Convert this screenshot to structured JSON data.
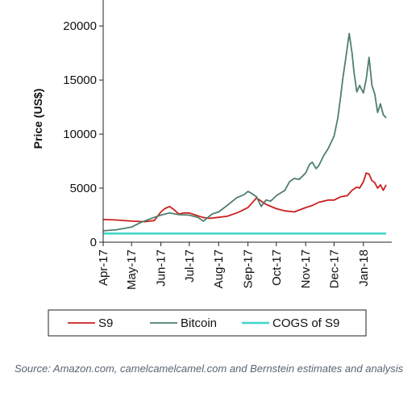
{
  "chart_data": {
    "type": "line",
    "ylabel": "Price (US$)",
    "xlabel": "",
    "ylim": [
      0,
      23000
    ],
    "y_ticks": [
      0,
      5000,
      10000,
      15000,
      20000
    ],
    "y_tick_labels": [
      "0",
      "5000",
      "10000",
      "15000",
      "20000"
    ],
    "x_range": [
      "2017-04-01",
      "2018-01-31"
    ],
    "x_ticks": [
      "2017-04-01",
      "2017-05-01",
      "2017-06-01",
      "2017-07-01",
      "2017-08-01",
      "2017-09-01",
      "2017-10-01",
      "2017-11-01",
      "2017-12-01",
      "2018-01-01"
    ],
    "x_tick_labels": [
      "Apr-17",
      "May-17",
      "Jun-17",
      "Jul-17",
      "Aug-17",
      "Sep-17",
      "Oct-17",
      "Nov-17",
      "Dec-17",
      "Jan-18"
    ],
    "grid": false,
    "legend_position": "bottom",
    "series": [
      {
        "name": "S9",
        "color": "#cc1f1f",
        "x": [
          "2017-04-01",
          "2017-04-15",
          "2017-05-01",
          "2017-05-15",
          "2017-05-25",
          "2017-06-01",
          "2017-06-05",
          "2017-06-10",
          "2017-06-15",
          "2017-06-20",
          "2017-06-25",
          "2017-07-01",
          "2017-07-08",
          "2017-07-15",
          "2017-07-22",
          "2017-08-01",
          "2017-08-10",
          "2017-08-20",
          "2017-08-25",
          "2017-09-01",
          "2017-09-05",
          "2017-09-10",
          "2017-09-15",
          "2017-09-20",
          "2017-10-01",
          "2017-10-10",
          "2017-10-20",
          "2017-11-01",
          "2017-11-08",
          "2017-11-15",
          "2017-11-20",
          "2017-11-25",
          "2017-12-01",
          "2017-12-08",
          "2017-12-15",
          "2017-12-20",
          "2017-12-25",
          "2017-12-28",
          "2018-01-01",
          "2018-01-04",
          "2018-01-07",
          "2018-01-10",
          "2018-01-13",
          "2018-01-16",
          "2018-01-19",
          "2018-01-22",
          "2018-01-25"
        ],
        "values": [
          2100,
          2050,
          1950,
          1900,
          2000,
          2800,
          3100,
          3300,
          3000,
          2600,
          2700,
          2700,
          2500,
          2300,
          2200,
          2300,
          2400,
          2700,
          2900,
          3200,
          3600,
          4100,
          3800,
          3500,
          3100,
          2900,
          2800,
          3200,
          3400,
          3700,
          3800,
          3900,
          3900,
          4200,
          4300,
          4800,
          5100,
          5000,
          5600,
          6400,
          6300,
          5700,
          5500,
          5000,
          5300,
          4800,
          5300
        ]
      },
      {
        "name": "Bitcoin",
        "color": "#4e7f70",
        "x": [
          "2017-04-01",
          "2017-04-15",
          "2017-05-01",
          "2017-05-10",
          "2017-05-25",
          "2017-06-01",
          "2017-06-10",
          "2017-06-20",
          "2017-07-01",
          "2017-07-10",
          "2017-07-16",
          "2017-07-25",
          "2017-08-01",
          "2017-08-10",
          "2017-08-20",
          "2017-08-28",
          "2017-09-01",
          "2017-09-05",
          "2017-09-10",
          "2017-09-15",
          "2017-09-20",
          "2017-09-25",
          "2017-10-01",
          "2017-10-10",
          "2017-10-15",
          "2017-10-20",
          "2017-10-25",
          "2017-11-01",
          "2017-11-05",
          "2017-11-08",
          "2017-11-12",
          "2017-11-15",
          "2017-11-20",
          "2017-11-25",
          "2017-12-01",
          "2017-12-05",
          "2017-12-08",
          "2017-12-10",
          "2017-12-13",
          "2017-12-17",
          "2017-12-20",
          "2017-12-22",
          "2017-12-25",
          "2017-12-28",
          "2018-01-01",
          "2018-01-04",
          "2018-01-07",
          "2018-01-10",
          "2018-01-13",
          "2018-01-16",
          "2018-01-19",
          "2018-01-22",
          "2018-01-25"
        ],
        "values": [
          1050,
          1150,
          1400,
          1800,
          2300,
          2500,
          2700,
          2550,
          2500,
          2300,
          1950,
          2600,
          2800,
          3400,
          4100,
          4400,
          4700,
          4500,
          4200,
          3300,
          3900,
          3800,
          4300,
          4800,
          5600,
          5900,
          5800,
          6400,
          7200,
          7400,
          6800,
          7100,
          8000,
          8700,
          9800,
          11500,
          13500,
          15000,
          16800,
          19300,
          17500,
          15800,
          13900,
          14500,
          13800,
          15100,
          17100,
          14500,
          13700,
          12000,
          12800,
          11800,
          11500
        ]
      },
      {
        "name": "COGS of S9",
        "color": "#3fd5c8",
        "x": [
          "2017-04-01",
          "2018-01-25"
        ],
        "values": [
          800,
          800
        ]
      }
    ]
  },
  "legend": {
    "items": [
      "S9",
      "Bitcoin",
      "COGS of S9"
    ]
  },
  "source_text": "Source: Amazon.com, camelcamelcamel.com and Bernstein estimates and analysis"
}
